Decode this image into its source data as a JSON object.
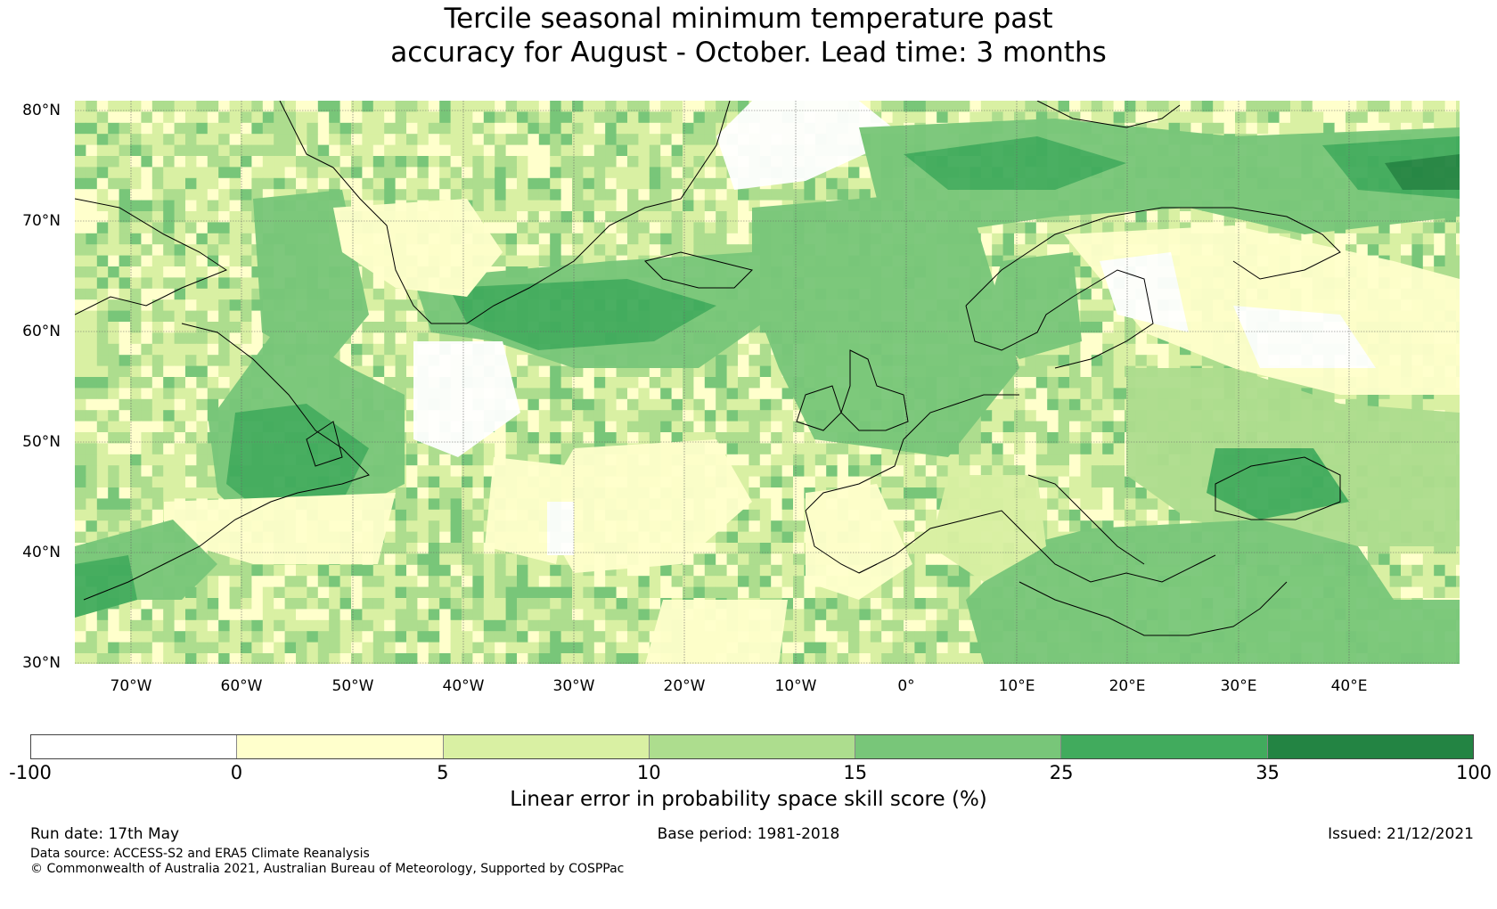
{
  "title": {
    "line1": "Tercile seasonal minimum temperature past",
    "line2": "accuracy for August - October. Lead time: 3 months"
  },
  "map": {
    "lat_labels": [
      "80°N",
      "70°N",
      "60°N",
      "50°N",
      "40°N",
      "30°N"
    ],
    "lon_labels": [
      "70°W",
      "60°W",
      "50°W",
      "40°W",
      "30°W",
      "20°W",
      "10°W",
      "0°",
      "10°E",
      "20°E",
      "30°E",
      "40°E"
    ]
  },
  "colorbar": {
    "ticks": [
      "-100",
      "0",
      "5",
      "10",
      "15",
      "25",
      "35",
      "100"
    ],
    "colors": [
      "#ffffff",
      "#ffffcc",
      "#d9f0a3",
      "#addd8e",
      "#78c679",
      "#41ab5d",
      "#238443"
    ],
    "title": "Linear error in probability space skill score (%)"
  },
  "footer": {
    "run_date": "Run date: 17th May",
    "base_period": "Base period: 1981-2018",
    "issued": "Issued: 21/12/2021",
    "data_source": "Data source: ACCESS-S2 and ERA5 Climate Reanalysis",
    "copyright": "© Commonwealth of Australia 2021, Australian Bureau of Meteorology, Supported by COSPPac"
  }
}
